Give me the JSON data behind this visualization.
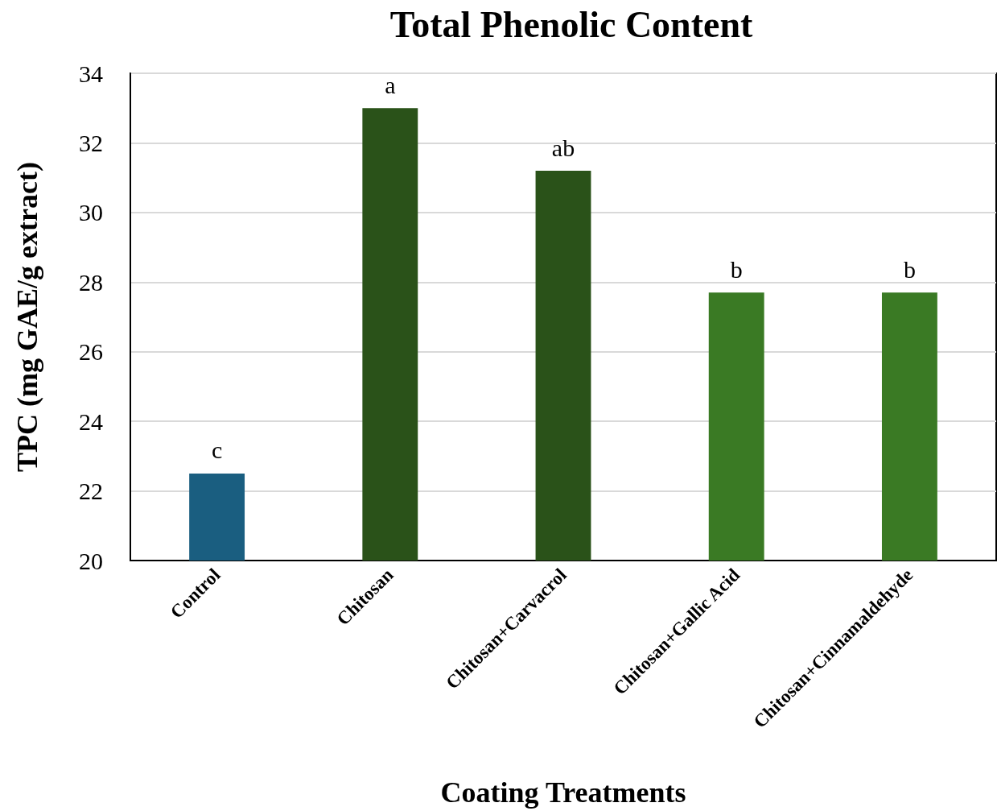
{
  "chart_data": {
    "type": "bar",
    "title": "Total Phenolic Content",
    "xlabel": "Coating Treatments",
    "ylabel": "TPC (mg GAE/g extract)",
    "categories": [
      "Control",
      "Chitosan",
      "Chitosan+Carvacrol",
      "Chitosan+Gallic Acid",
      "Chitosan+Cinnamaldehyde"
    ],
    "values": [
      22.5,
      33.0,
      31.2,
      27.7,
      27.7
    ],
    "colors": [
      "#1a5e80",
      "#2a5219",
      "#2a5219",
      "#3a7a24",
      "#3a7a24"
    ],
    "ylim": [
      20,
      34
    ],
    "yticks": [
      20,
      22,
      24,
      26,
      28,
      30,
      32,
      34
    ],
    "grid": "y",
    "annotations": [
      {
        "text": "c",
        "x": "Control",
        "y": 22.5
      },
      {
        "text": "a",
        "x": "Chitosan",
        "y": 33.0
      },
      {
        "text": "ab",
        "x": "Chitosan+Carvacrol",
        "y": 31.2
      },
      {
        "text": "b",
        "x": "Chitosan+Gallic Acid",
        "y": 27.7
      },
      {
        "text": "b",
        "x": "Chitosan+Cinnamaldehyde",
        "y": 27.7
      }
    ]
  }
}
